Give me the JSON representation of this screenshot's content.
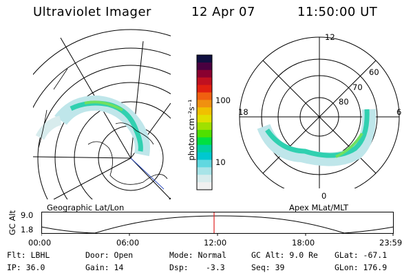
{
  "header": {
    "instrument": "Ultraviolet Imager",
    "date": "12 Apr 07",
    "time": "11:50:00 UT"
  },
  "colorbar": {
    "unit_label": "photon cm⁻²s⁻¹",
    "ticks": [
      "100",
      "10"
    ],
    "colors": [
      "#101040",
      "#4a0040",
      "#8a0030",
      "#c01020",
      "#e02010",
      "#f06010",
      "#f09010",
      "#f0c000",
      "#e0e000",
      "#a0e000",
      "#50e000",
      "#00e040",
      "#00d0a0",
      "#00c8d0",
      "#60d8e0",
      "#a8e4e8",
      "#d8eced",
      "#f0f0f0"
    ]
  },
  "left_panel": {
    "label": "Geographic Lat/Lon",
    "aurora_color": "#30d0b0"
  },
  "right_panel": {
    "label": "Apex MLat/MLT",
    "mlt_labels": {
      "top": "12",
      "left": "18",
      "right": "6",
      "bottom": "0"
    },
    "lat_labels": [
      "60",
      "70",
      "80"
    ]
  },
  "timeline": {
    "y_axis_label": "GC Alt",
    "y_ticks": [
      "9.0",
      "1.8"
    ],
    "x_ticks": [
      "00:00",
      "06:00",
      "12:00",
      "18:00",
      "23:59"
    ],
    "marker_color": "#e02020"
  },
  "info": {
    "flt": "Flt: LBHL",
    "ip": "IP: 36.0",
    "door": "Door: Open",
    "gain": "Gain: 14",
    "mode": "Mode: Normal",
    "dsp_label": "Dsp:",
    "dsp_value": "-3.3",
    "gc_alt": "GC Alt: 9.0 Re",
    "seq": "Seq: 39",
    "glat": "GLat: -67.1",
    "glon": "GLon: 176.9"
  }
}
